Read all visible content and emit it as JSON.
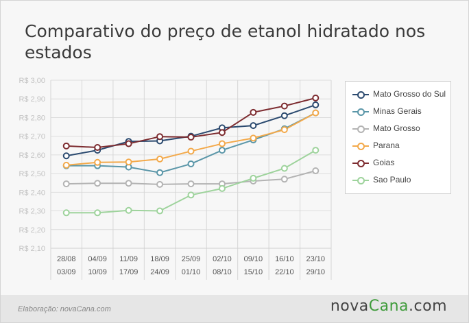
{
  "title": "Comparativo do preço de etanol hidratado nos estados",
  "footer": {
    "credit": "Elaboração: novaCana.com"
  },
  "brand": {
    "part1": "nova",
    "part2": "Cana",
    "part3": ".com"
  },
  "chart_data": {
    "type": "line",
    "title": "Comparativo do preço de etanol hidratado nos estados",
    "categories": [
      {
        "start": "28/08",
        "end": "03/09"
      },
      {
        "start": "04/09",
        "end": "10/09"
      },
      {
        "start": "11/09",
        "end": "17/09"
      },
      {
        "start": "18/09",
        "end": "24/09"
      },
      {
        "start": "25/09",
        "end": "01/10"
      },
      {
        "start": "02/10",
        "end": "08/10"
      },
      {
        "start": "09/10",
        "end": "15/10"
      },
      {
        "start": "16/10",
        "end": "22/10"
      },
      {
        "start": "23/10",
        "end": "29/10"
      }
    ],
    "ylim": [
      2.1,
      3.0
    ],
    "yticks": [
      2.1,
      2.2,
      2.3,
      2.4,
      2.5,
      2.6,
      2.7,
      2.8,
      2.9,
      3.0
    ],
    "ytick_labels": [
      "R$ 2,10",
      "R$ 2,20",
      "R$ 2,30",
      "R$ 2,40",
      "R$ 2,50",
      "R$ 2,60",
      "R$ 2,70",
      "R$ 2,80",
      "R$ 2,90",
      "R$ 3,00"
    ],
    "grid": true,
    "legend_position": "right",
    "series": [
      {
        "name": "Mato Grosso do Sul",
        "color": "#2b4a6f",
        "values": [
          2.595,
          2.625,
          2.672,
          2.675,
          2.7,
          2.745,
          2.757,
          2.81,
          2.868
        ]
      },
      {
        "name": "Minas Gerais",
        "color": "#5a96a8",
        "values": [
          2.542,
          2.542,
          2.535,
          2.505,
          2.552,
          2.625,
          2.68,
          2.74,
          2.825
        ]
      },
      {
        "name": "Mato Grosso",
        "color": "#b3b3b3",
        "values": [
          2.445,
          2.448,
          2.448,
          2.442,
          2.445,
          2.445,
          2.46,
          2.47,
          2.515
        ]
      },
      {
        "name": "Parana",
        "color": "#f3a94a",
        "values": [
          2.545,
          2.56,
          2.562,
          2.578,
          2.62,
          2.66,
          2.69,
          2.735,
          2.825
        ]
      },
      {
        "name": "Goias",
        "color": "#7d2c30",
        "values": [
          2.648,
          2.64,
          2.66,
          2.698,
          2.695,
          2.72,
          2.828,
          2.862,
          2.905
        ]
      },
      {
        "name": "Sao Paulo",
        "color": "#9ed39c",
        "values": [
          2.29,
          2.29,
          2.303,
          2.3,
          2.385,
          2.42,
          2.475,
          2.528,
          2.625
        ]
      }
    ]
  }
}
